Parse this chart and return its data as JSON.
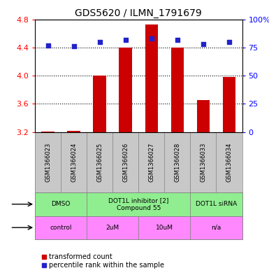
{
  "title": "GDS5620 / ILMN_1791679",
  "samples": [
    "GSM1366023",
    "GSM1366024",
    "GSM1366025",
    "GSM1366026",
    "GSM1366027",
    "GSM1366028",
    "GSM1366033",
    "GSM1366034"
  ],
  "red_values": [
    3.21,
    3.22,
    4.0,
    4.4,
    4.73,
    4.4,
    3.65,
    3.98
  ],
  "blue_percentile": [
    77,
    76,
    80,
    82,
    83,
    82,
    78,
    80
  ],
  "ylim_left": [
    3.2,
    4.8
  ],
  "ylim_right": [
    0,
    100
  ],
  "yticks_left": [
    3.2,
    3.6,
    4.0,
    4.4,
    4.8
  ],
  "yticks_right": [
    0,
    25,
    50,
    75,
    100
  ],
  "ytick_right_labels": [
    "0",
    "25",
    "50",
    "75",
    "100%"
  ],
  "agent_groups": [
    {
      "label": "DMSO",
      "start": 0,
      "end": 2,
      "color": "#90EE90"
    },
    {
      "label": "DOT1L inhibitor [2]\nCompound 55",
      "start": 2,
      "end": 6,
      "color": "#90EE90"
    },
    {
      "label": "DOT1L siRNA",
      "start": 6,
      "end": 8,
      "color": "#90EE90"
    }
  ],
  "dose_groups": [
    {
      "label": "control",
      "start": 0,
      "end": 2,
      "color": "#FF88FF"
    },
    {
      "label": "2uM",
      "start": 2,
      "end": 4,
      "color": "#FF88FF"
    },
    {
      "label": "10uM",
      "start": 4,
      "end": 6,
      "color": "#FF88FF"
    },
    {
      "label": "n/a",
      "start": 6,
      "end": 8,
      "color": "#FF88FF"
    }
  ],
  "legend_red": "transformed count",
  "legend_blue": "percentile rank within the sample",
  "bar_color": "#CC0000",
  "dot_color": "#2222CC",
  "background_color": "#ffffff",
  "sample_bg": "#C8C8C8",
  "title_fontsize": 10
}
